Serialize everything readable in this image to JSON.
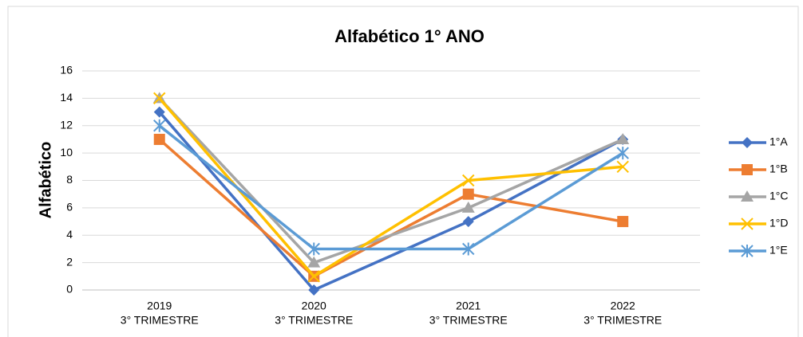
{
  "chart_data": {
    "type": "line",
    "title": "Alfabético 1° ANO",
    "ylabel": "Alfabético",
    "categories": [
      [
        "2019",
        "3° TRIMESTRE"
      ],
      [
        "2020",
        "3° TRIMESTRE"
      ],
      [
        "2021",
        "3° TRIMESTRE"
      ],
      [
        "2022",
        "3° TRIMESTRE"
      ]
    ],
    "series": [
      {
        "name": "1°A",
        "color": "#4472c4",
        "marker": "diamond",
        "values": [
          13,
          0,
          5,
          11
        ]
      },
      {
        "name": "1°B",
        "color": "#ed7d31",
        "marker": "square",
        "values": [
          11,
          1,
          7,
          5
        ]
      },
      {
        "name": "1°C",
        "color": "#a5a5a5",
        "marker": "triangle",
        "values": [
          14,
          2,
          6,
          11
        ]
      },
      {
        "name": "1°D",
        "color": "#ffc000",
        "marker": "x",
        "values": [
          14,
          1,
          8,
          9
        ]
      },
      {
        "name": "1°E",
        "color": "#5b9bd5",
        "marker": "star",
        "values": [
          12,
          3,
          3,
          10
        ]
      }
    ],
    "ylim": [
      0,
      16
    ],
    "yticks": [
      0,
      2,
      4,
      6,
      8,
      10,
      12,
      14,
      16
    ],
    "grid": true,
    "legend": "right"
  }
}
